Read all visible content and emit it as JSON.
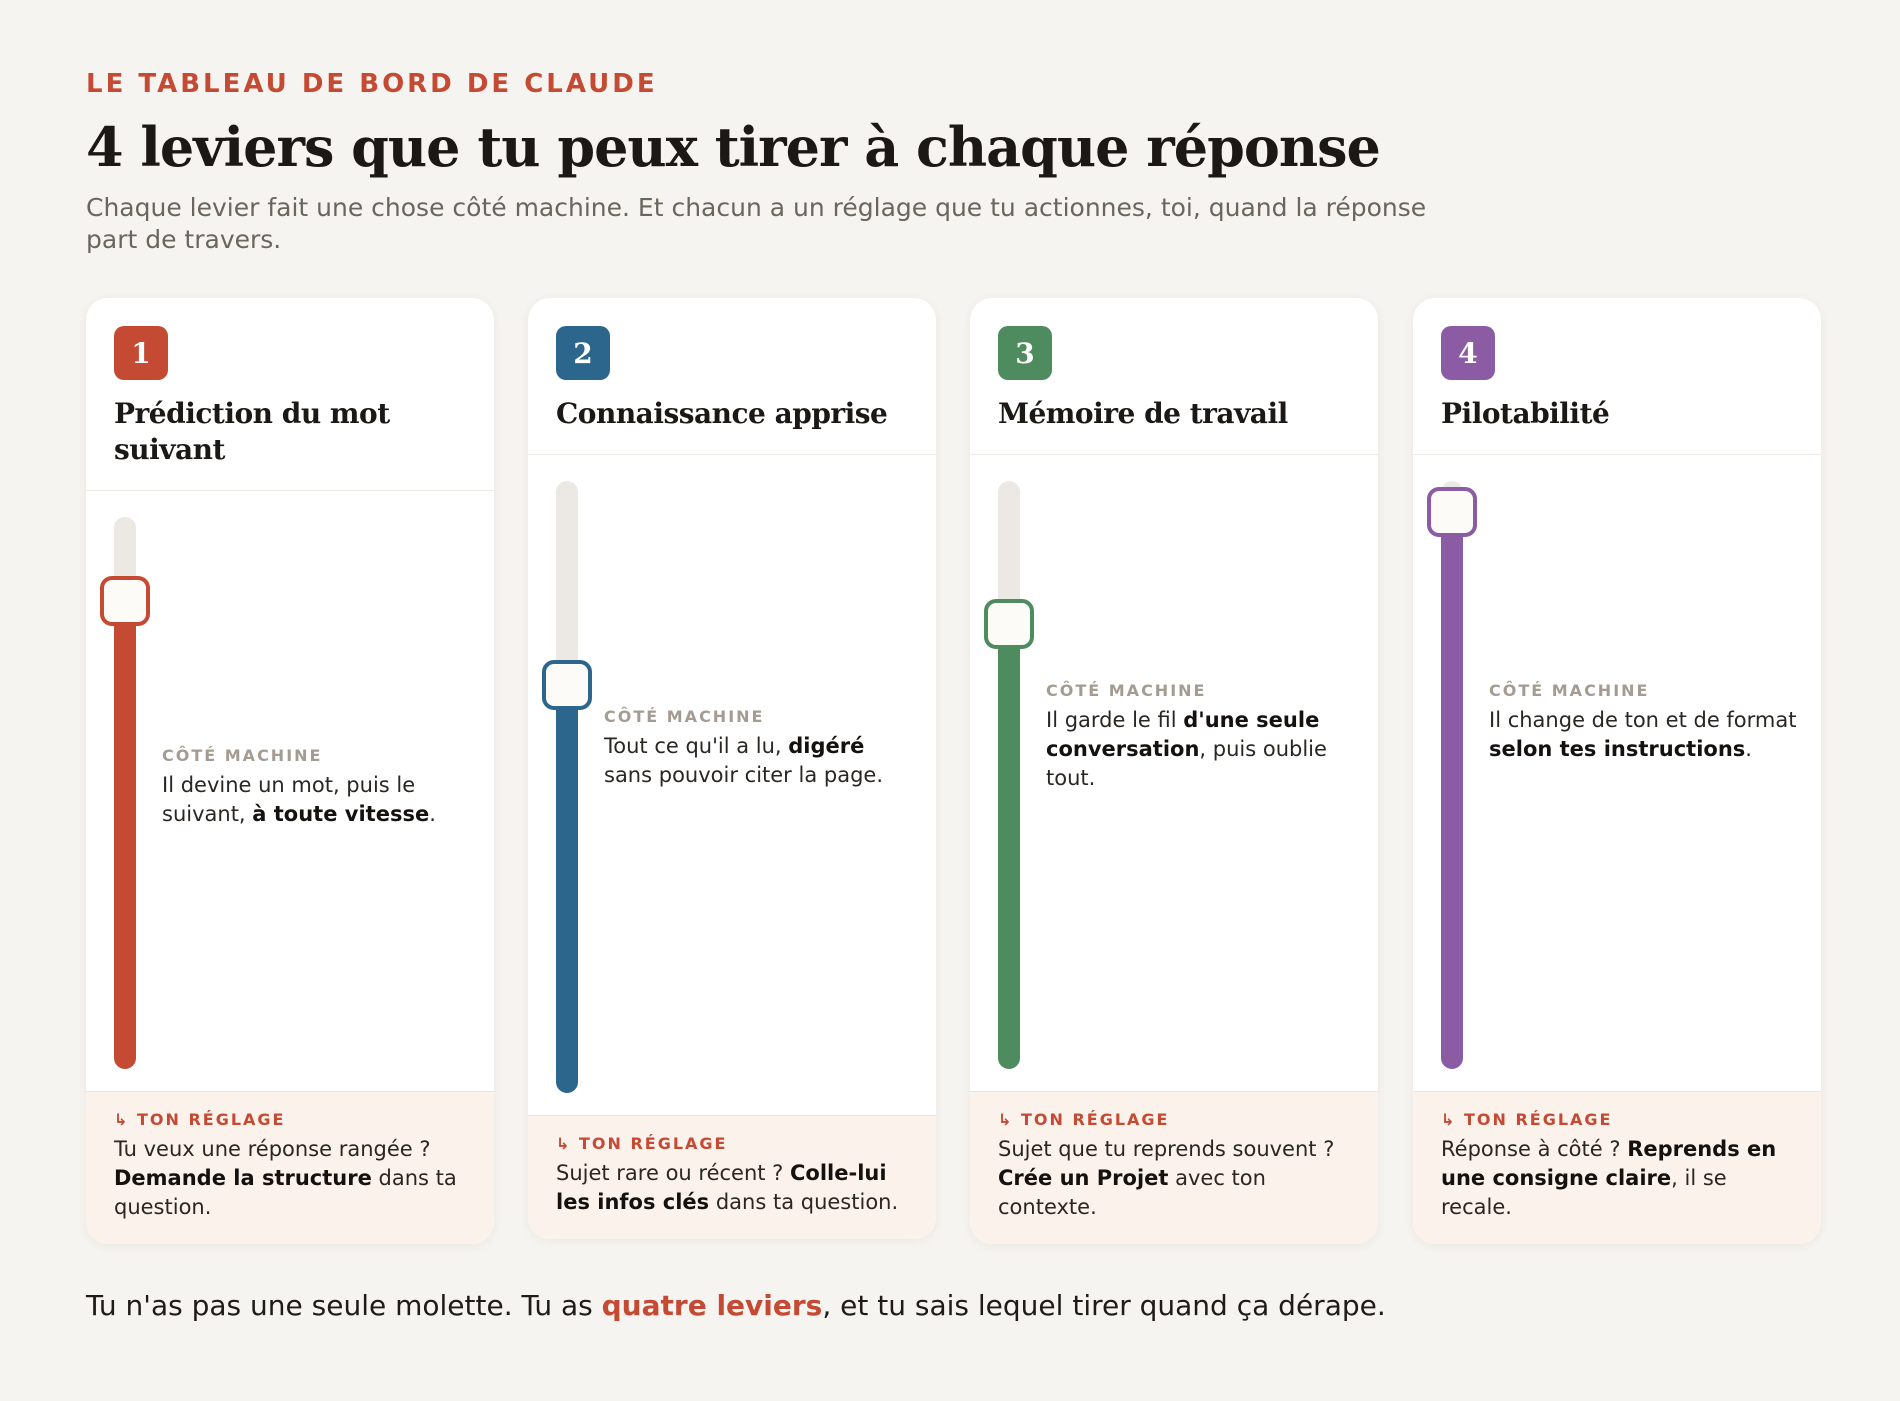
{
  "header": {
    "eyebrow": "LE TABLEAU DE BORD DE CLAUDE",
    "title": "4 leviers que tu peux tirer à chaque réponse",
    "subtitle": "Chaque levier fait une chose côté machine. Et chacun a un réglage que tu actionnes, toi, quand la réponse part de travers."
  },
  "labels": {
    "machine": "CÔTÉ MACHINE",
    "reglage": "↳ TON RÉGLAGE"
  },
  "cards": [
    {
      "number": "1",
      "title": "Prédiction du mot suivant",
      "color": "#c54a33",
      "level": 0.84,
      "machine": [
        {
          "t": "Il devine un mot, puis le suivant, "
        },
        {
          "t": "à toute vitesse",
          "b": true
        },
        {
          "t": "."
        }
      ],
      "reglage": [
        {
          "t": "Tu veux une réponse rangée ? "
        },
        {
          "t": "Demande la structure",
          "b": true
        },
        {
          "t": " dans ta question."
        }
      ]
    },
    {
      "number": "2",
      "title": "Connaissance apprise",
      "color": "#2d668d",
      "level": 0.66,
      "machine": [
        {
          "t": "Tout ce qu'il a lu, "
        },
        {
          "t": "digéré",
          "b": true
        },
        {
          "t": " sans pouvoir citer la page."
        }
      ],
      "reglage": [
        {
          "t": "Sujet rare ou récent ? "
        },
        {
          "t": "Colle-lui les infos clés",
          "b": true
        },
        {
          "t": " dans ta question."
        }
      ]
    },
    {
      "number": "3",
      "title": "Mémoire de travail",
      "color": "#4e8b5e",
      "level": 0.75,
      "machine": [
        {
          "t": "Il garde le fil "
        },
        {
          "t": "d'une seule conversation",
          "b": true
        },
        {
          "t": ", puis oublie tout."
        }
      ],
      "reglage": [
        {
          "t": "Sujet que tu reprends souvent ? "
        },
        {
          "t": "Crée un Projet",
          "b": true
        },
        {
          "t": " avec ton contexte."
        }
      ]
    },
    {
      "number": "4",
      "title": "Pilotabilité",
      "color": "#8b5ba3",
      "level": 0.94,
      "machine": [
        {
          "t": "Il change de ton et de format "
        },
        {
          "t": "selon tes instructions",
          "b": true
        },
        {
          "t": "."
        }
      ],
      "reglage": [
        {
          "t": "Réponse à côté ? "
        },
        {
          "t": "Reprends en une consigne claire",
          "b": true
        },
        {
          "t": ", il se recale."
        }
      ]
    }
  ],
  "footer": {
    "before": "Tu n'as pas une seule molette. Tu as ",
    "accent": "quatre leviers",
    "after": ", et tu sais lequel tirer quand ça dérape."
  }
}
